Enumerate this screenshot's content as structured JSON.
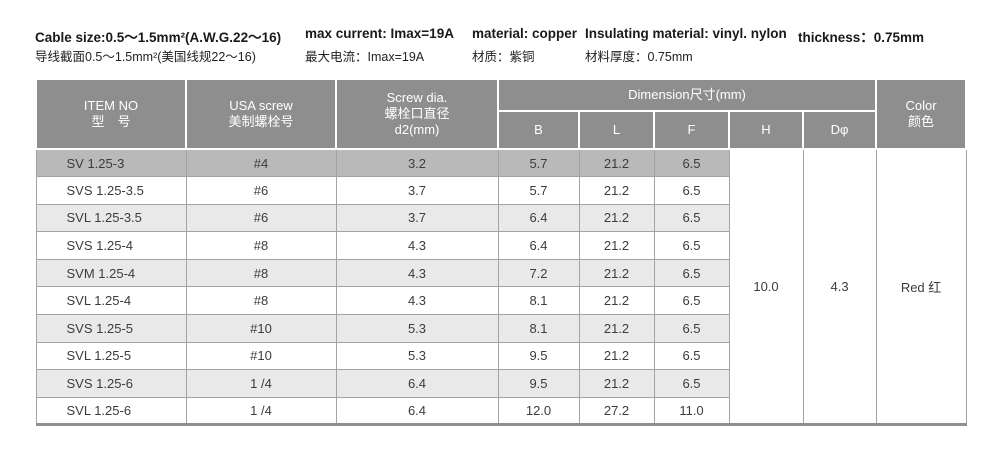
{
  "notes": {
    "cable_size_en": "Cable size:0.5～1.5mm²(A.W.G.22～16)",
    "cable_size_cn": "导线截面0.5～1.5mm²(美国线规22～16)",
    "max_current_en": "max current: Imax=19A",
    "max_current_cn": "最大电流：Imax=19A",
    "material_en": "material: copper",
    "material_cn": "材质：紫铜",
    "insulating_en": "Insulating material: vinyl. nylon",
    "thickness_cn": "材料厚度：0.75mm",
    "thickness_en": "thickness：0.75mm"
  },
  "table": {
    "headers": {
      "item_en": "ITEM NO",
      "item_cn": "型　号",
      "usa_en": "USA screw",
      "usa_cn": "美制螺栓号",
      "screw_l1": "Screw dia.",
      "screw_l2": "螺栓口直径",
      "screw_l3": "d2(mm)",
      "dimension": "Dimension尺寸(mm)",
      "dim_sub": [
        "B",
        "L",
        "F",
        "H",
        "Dφ"
      ],
      "color_en": "Color",
      "color_cn": "颜色"
    },
    "rows": [
      {
        "item": "SV 1.25-3",
        "usa_screw": "#4",
        "screw_dia": "3.2",
        "b": "5.7",
        "l": "21.2",
        "f": "6.5"
      },
      {
        "item": "SVS 1.25-3.5",
        "usa_screw": "#6",
        "screw_dia": "3.7",
        "b": "5.7",
        "l": "21.2",
        "f": "6.5"
      },
      {
        "item": "SVL 1.25-3.5",
        "usa_screw": "#6",
        "screw_dia": "3.7",
        "b": "6.4",
        "l": "21.2",
        "f": "6.5"
      },
      {
        "item": "SVS 1.25-4",
        "usa_screw": "#8",
        "screw_dia": "4.3",
        "b": "6.4",
        "l": "21.2",
        "f": "6.5"
      },
      {
        "item": "SVM 1.25-4",
        "usa_screw": "#8",
        "screw_dia": "4.3",
        "b": "7.2",
        "l": "21.2",
        "f": "6.5"
      },
      {
        "item": "SVL 1.25-4",
        "usa_screw": "#8",
        "screw_dia": "4.3",
        "b": "8.1",
        "l": "21.2",
        "f": "6.5"
      },
      {
        "item": "SVS 1.25-5",
        "usa_screw": "#10",
        "screw_dia": "5.3",
        "b": "8.1",
        "l": "21.2",
        "f": "6.5"
      },
      {
        "item": "SVL 1.25-5",
        "usa_screw": "#10",
        "screw_dia": "5.3",
        "b": "9.5",
        "l": "21.2",
        "f": "6.5"
      },
      {
        "item": "SVS 1.25-6",
        "usa_screw": "1 /4",
        "screw_dia": "6.4",
        "b": "9.5",
        "l": "21.2",
        "f": "6.5"
      },
      {
        "item": "SVL 1.25-6",
        "usa_screw": "1 /4",
        "screw_dia": "6.4",
        "b": "12.0",
        "l": "27.2",
        "f": "11.0"
      }
    ],
    "merged": {
      "h": "10.0",
      "d_phi": "4.3",
      "color": "Red 红"
    }
  },
  "colors": {
    "header_bg": "#8e8e8e",
    "first_row_bg": "#b9b9b9",
    "stripe_bg": "#e9e9e9",
    "border": "#a3a3a3",
    "thick_border": "#8f8f8f"
  }
}
